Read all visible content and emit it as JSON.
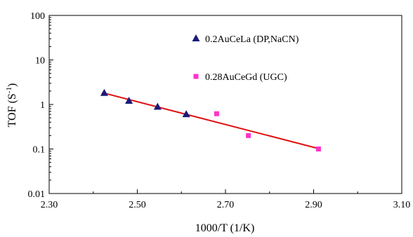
{
  "chart_data": {
    "type": "scatter",
    "xlabel": "1000/T (1/K)",
    "ylabel": {
      "base": "TOF (S",
      "sup": "-1",
      "close": ")"
    },
    "xlim": [
      2.3,
      3.1
    ],
    "ylim": [
      0.01,
      100
    ],
    "yscale": "log",
    "xticks": [
      "2.30",
      "2.50",
      "2.70",
      "2.90",
      "3.10"
    ],
    "yticks": [
      "0.01",
      "0.1",
      "1",
      "10",
      "100"
    ],
    "legend_position": "top-right",
    "series": [
      {
        "name": "0.2AuCeLa (DP,NaCN)",
        "marker": "triangle",
        "color": "#1a1a7a",
        "x": [
          2.425,
          2.481,
          2.546,
          2.611
        ],
        "y": [
          1.8,
          1.2,
          0.88,
          0.6
        ]
      },
      {
        "name": "0.28AuCeGd (UGC)",
        "marker": "square",
        "color": "#ff33cc",
        "x": [
          2.68,
          2.752,
          2.911
        ],
        "y": [
          0.62,
          0.2,
          0.1
        ]
      }
    ],
    "fit_line": {
      "color": "#e01010",
      "x": [
        2.42,
        2.915
      ],
      "y": [
        1.85,
        0.1
      ]
    }
  }
}
